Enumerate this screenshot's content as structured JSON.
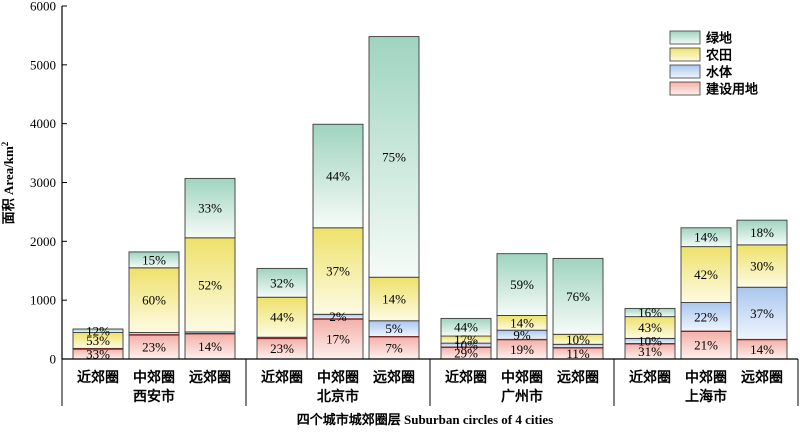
{
  "chart_data": {
    "type": "bar",
    "stacked": true,
    "title": "",
    "xlabel": "四个城市城郊圈层 Suburban circles of 4 cities",
    "ylabel": "面积 Area/km",
    "ylabel_sup": "2",
    "ylim": [
      0,
      6000
    ],
    "yticks": [
      "0",
      "1000",
      "2000",
      "3000",
      "4000",
      "5000",
      "6000"
    ],
    "legend_position": "top-right",
    "grid": false,
    "series": [
      {
        "name": "建设用地",
        "color_top": "#f3b0a8",
        "color_bottom": "#fdf1ee"
      },
      {
        "name": "水体",
        "color_top": "#a9c6ee",
        "color_bottom": "#f0f6fd"
      },
      {
        "name": "农田",
        "color_top": "#eee16a",
        "color_bottom": "#fdfbe4"
      },
      {
        "name": "绿地",
        "color_top": "#9fd4bf",
        "color_bottom": "#f6fbf8"
      }
    ],
    "cities": [
      {
        "name": "西安市",
        "bars": [
          {
            "label": "近郊圈",
            "values": [
              170,
              10,
              270,
              60
            ],
            "pct_labels": [
              "33%",
              "",
              "53%",
              "12%"
            ]
          },
          {
            "label": "中郊圈",
            "values": [
              410,
              40,
              1100,
              270
            ],
            "pct_labels": [
              "23%",
              "",
              "60%",
              "15%"
            ]
          },
          {
            "label": "远郊圈",
            "values": [
              430,
              30,
              1600,
              1010
            ],
            "pct_labels": [
              "14%",
              "",
              "52%",
              "33%"
            ]
          }
        ]
      },
      {
        "name": "北京市",
        "bars": [
          {
            "label": "近郊圈",
            "values": [
              350,
              20,
              680,
              490
            ],
            "pct_labels": [
              "23%",
              "",
              "44%",
              "32%"
            ]
          },
          {
            "label": "中郊圈",
            "values": [
              680,
              80,
              1470,
              1760
            ],
            "pct_labels": [
              "17%",
              "2%",
              "37%",
              "44%"
            ]
          },
          {
            "label": "远郊圈",
            "values": [
              380,
              270,
              740,
              4090
            ],
            "pct_labels": [
              "7%",
              "5%",
              "14%",
              "75%"
            ]
          }
        ]
      },
      {
        "name": "广州市",
        "bars": [
          {
            "label": "近郊圈",
            "values": [
              200,
              70,
              120,
              300
            ],
            "pct_labels": [
              "29%",
              "10%",
              "17%",
              "44%"
            ]
          },
          {
            "label": "中郊圈",
            "values": [
              330,
              160,
              250,
              1050
            ],
            "pct_labels": [
              "19%",
              "9%",
              "14%",
              "59%"
            ]
          },
          {
            "label": "远郊圈",
            "values": [
              190,
              60,
              170,
              1290
            ],
            "pct_labels": [
              "11%",
              "",
              "10%",
              "76%"
            ]
          }
        ]
      },
      {
        "name": "上海市",
        "bars": [
          {
            "label": "近郊圈",
            "values": [
              260,
              90,
              370,
              140
            ],
            "pct_labels": [
              "31%",
              "10%",
              "43%",
              "16%"
            ]
          },
          {
            "label": "中郊圈",
            "values": [
              470,
              490,
              950,
              320
            ],
            "pct_labels": [
              "21%",
              "22%",
              "42%",
              "14%"
            ]
          },
          {
            "label": "远郊圈",
            "values": [
              330,
              890,
              720,
              420
            ],
            "pct_labels": [
              "14%",
              "37%",
              "30%",
              "18%"
            ]
          }
        ]
      }
    ]
  }
}
